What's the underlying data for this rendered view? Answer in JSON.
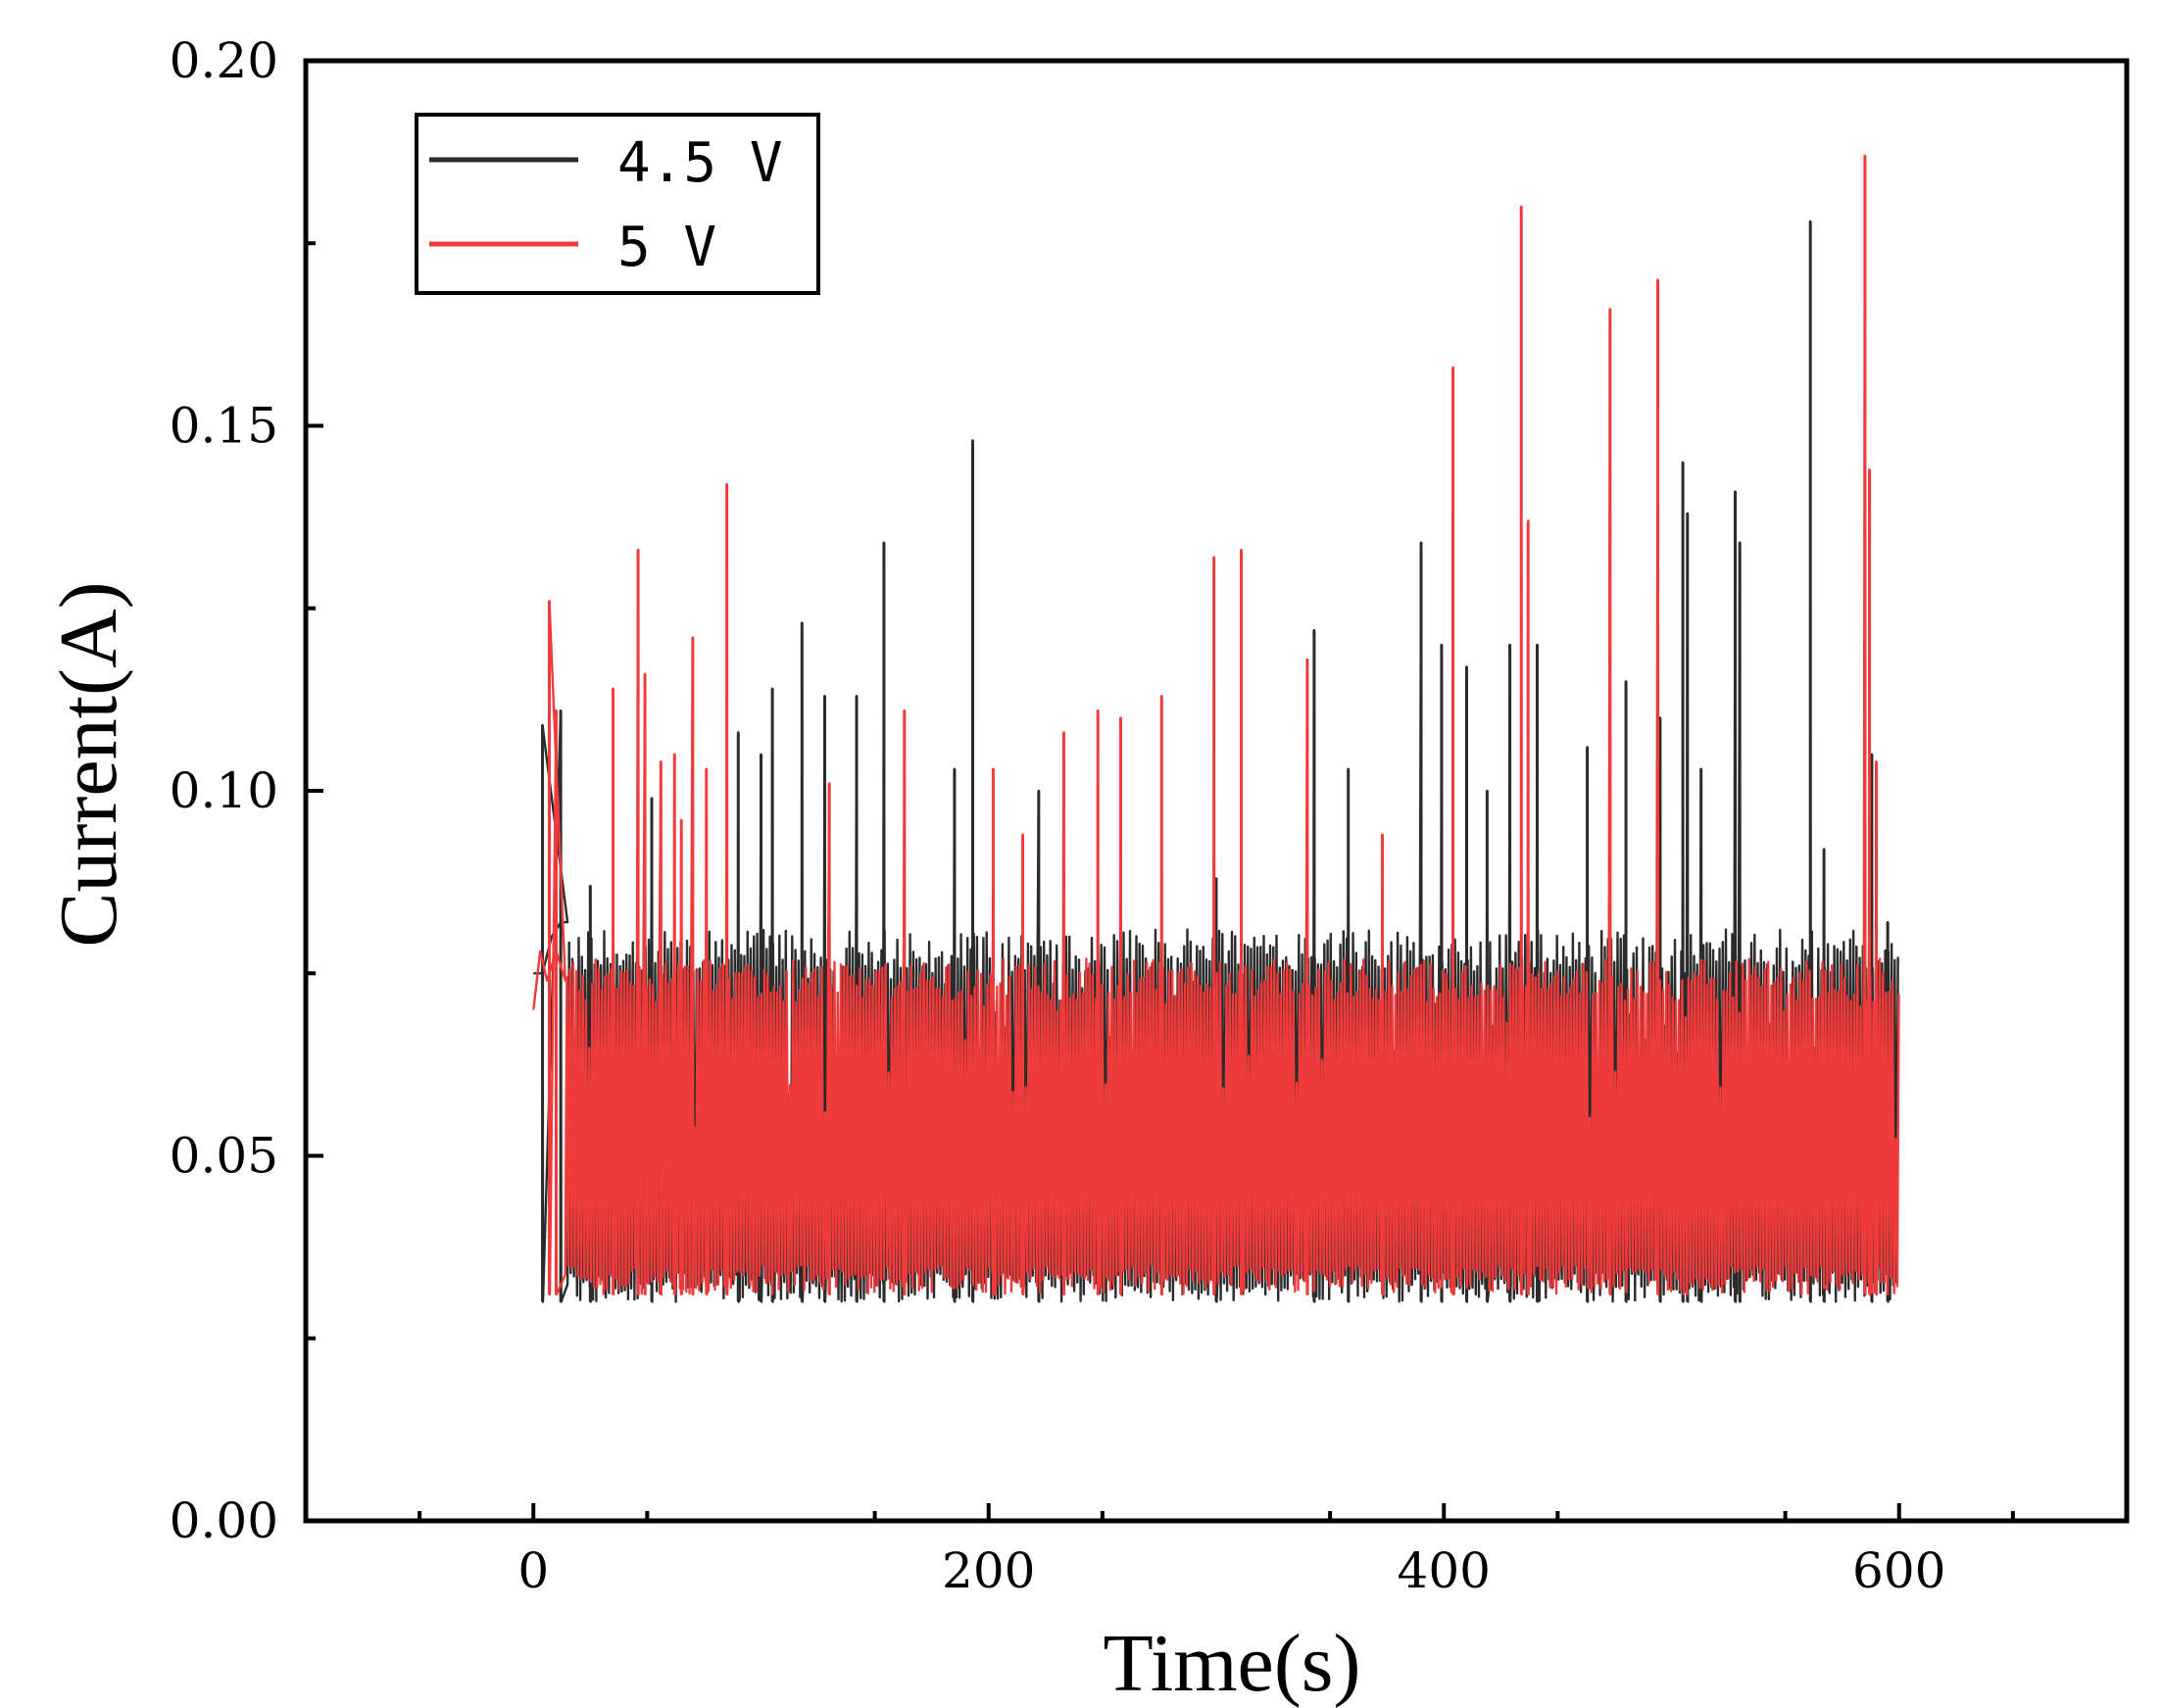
{
  "chart_data": {
    "type": "line",
    "title": "",
    "xlabel": "Time(s)",
    "ylabel": "Current(A)",
    "xlim": [
      -100,
      700
    ],
    "ylim": [
      0.0,
      0.2
    ],
    "x_ticks": [
      0,
      200,
      400,
      600
    ],
    "x_tick_labels": [
      "0",
      "200",
      "400",
      "600"
    ],
    "y_ticks": [
      0.0,
      0.05,
      0.1,
      0.15,
      0.2
    ],
    "y_tick_labels": [
      "0.00",
      "0.05",
      "0.10",
      "0.15",
      "0.20"
    ],
    "legend_position": "top-left",
    "series": [
      {
        "name": "4.5 V",
        "color": "#2b2b2b",
        "initial": {
          "x": [
            0,
            4,
            8,
            12,
            15
          ],
          "y": [
            0.075,
            0.075,
            0.08,
            0.082,
            0.082
          ]
        },
        "start": 15,
        "end": 600,
        "baseline_low": 0.03,
        "baseline_high": 0.081,
        "spikes": [
          {
            "x": 4,
            "y": 0.109
          },
          {
            "x": 12,
            "y": 0.111
          },
          {
            "x": 25,
            "y": 0.087
          },
          {
            "x": 52,
            "y": 0.099
          },
          {
            "x": 90,
            "y": 0.108
          },
          {
            "x": 100,
            "y": 0.105
          },
          {
            "x": 105,
            "y": 0.114
          },
          {
            "x": 118,
            "y": 0.123
          },
          {
            "x": 128,
            "y": 0.113
          },
          {
            "x": 142,
            "y": 0.113
          },
          {
            "x": 154,
            "y": 0.134
          },
          {
            "x": 185,
            "y": 0.103
          },
          {
            "x": 193,
            "y": 0.148
          },
          {
            "x": 222,
            "y": 0.1
          },
          {
            "x": 300,
            "y": 0.088
          },
          {
            "x": 343,
            "y": 0.122
          },
          {
            "x": 358,
            "y": 0.103
          },
          {
            "x": 390,
            "y": 0.134
          },
          {
            "x": 399,
            "y": 0.12
          },
          {
            "x": 410,
            "y": 0.117
          },
          {
            "x": 419,
            "y": 0.1
          },
          {
            "x": 429,
            "y": 0.12
          },
          {
            "x": 441,
            "y": 0.12
          },
          {
            "x": 463,
            "y": 0.106
          },
          {
            "x": 480,
            "y": 0.115
          },
          {
            "x": 495,
            "y": 0.11
          },
          {
            "x": 505,
            "y": 0.145
          },
          {
            "x": 507,
            "y": 0.138
          },
          {
            "x": 513,
            "y": 0.103
          },
          {
            "x": 528,
            "y": 0.141
          },
          {
            "x": 530,
            "y": 0.134
          },
          {
            "x": 561,
            "y": 0.178
          },
          {
            "x": 567,
            "y": 0.092
          },
          {
            "x": 588,
            "y": 0.105
          },
          {
            "x": 595,
            "y": 0.082
          }
        ]
      },
      {
        "name": "5 V",
        "color": "#ef3b3b",
        "initial": {
          "x": [
            0,
            3,
            6,
            10,
            14
          ],
          "y": [
            0.07,
            0.078,
            0.074,
            0.078,
            0.074
          ]
        },
        "start": 14,
        "end": 600,
        "baseline_low": 0.031,
        "baseline_high": 0.077,
        "spikes": [
          {
            "x": 7,
            "y": 0.126
          },
          {
            "x": 10,
            "y": 0.111
          },
          {
            "x": 35,
            "y": 0.114
          },
          {
            "x": 46,
            "y": 0.133
          },
          {
            "x": 49,
            "y": 0.116
          },
          {
            "x": 56,
            "y": 0.104
          },
          {
            "x": 62,
            "y": 0.105
          },
          {
            "x": 65,
            "y": 0.096
          },
          {
            "x": 70,
            "y": 0.121
          },
          {
            "x": 76,
            "y": 0.103
          },
          {
            "x": 85,
            "y": 0.142
          },
          {
            "x": 130,
            "y": 0.101
          },
          {
            "x": 163,
            "y": 0.111
          },
          {
            "x": 202,
            "y": 0.103
          },
          {
            "x": 215,
            "y": 0.094
          },
          {
            "x": 233,
            "y": 0.108
          },
          {
            "x": 248,
            "y": 0.111
          },
          {
            "x": 258,
            "y": 0.11
          },
          {
            "x": 276,
            "y": 0.113
          },
          {
            "x": 299,
            "y": 0.132
          },
          {
            "x": 311,
            "y": 0.133
          },
          {
            "x": 340,
            "y": 0.118
          },
          {
            "x": 373,
            "y": 0.094
          },
          {
            "x": 404,
            "y": 0.158
          },
          {
            "x": 434,
            "y": 0.18
          },
          {
            "x": 437,
            "y": 0.137
          },
          {
            "x": 473,
            "y": 0.166
          },
          {
            "x": 494,
            "y": 0.17
          },
          {
            "x": 585,
            "y": 0.187
          },
          {
            "x": 587,
            "y": 0.144
          },
          {
            "x": 590,
            "y": 0.104
          }
        ]
      }
    ]
  }
}
